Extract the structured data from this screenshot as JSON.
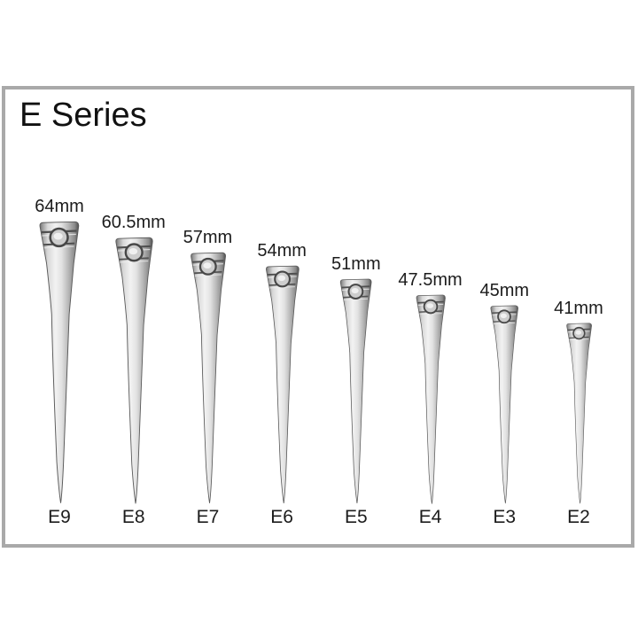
{
  "page": {
    "background_color": "#ffffff",
    "frame_border_color": "#a9a9a9"
  },
  "title": "E Series",
  "nails": [
    {
      "code": "E9",
      "size_label": "64mm",
      "length_mm": 64
    },
    {
      "code": "E8",
      "size_label": "60.5mm",
      "length_mm": 60.5
    },
    {
      "code": "E7",
      "size_label": "57mm",
      "length_mm": 57
    },
    {
      "code": "E6",
      "size_label": "54mm",
      "length_mm": 54
    },
    {
      "code": "E5",
      "size_label": "51mm",
      "length_mm": 51
    },
    {
      "code": "E4",
      "size_label": "47.5mm",
      "length_mm": 47.5
    },
    {
      "code": "E3",
      "size_label": "45mm",
      "length_mm": 45
    },
    {
      "code": "E2",
      "size_label": "41mm",
      "length_mm": 41
    }
  ]
}
